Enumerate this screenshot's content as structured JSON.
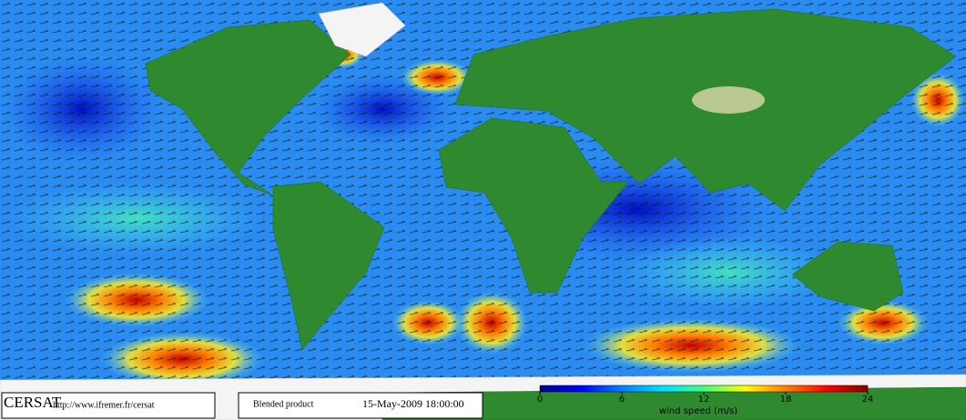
{
  "map": {
    "org": "CERSAT",
    "url": "http://www.ifremer.fr/cersat",
    "product": "Blended product",
    "date": "15-May-2009 18:00:00"
  },
  "colorbar": {
    "label": "wind speed (m/s)",
    "lim": [
      0,
      24
    ],
    "ticks": [
      0,
      6,
      12,
      18,
      24
    ],
    "colors": [
      "#00008b",
      "#0000ff",
      "#0080ff",
      "#00e0ff",
      "#40ff80",
      "#ffff00",
      "#ff8000",
      "#ff0000",
      "#800000"
    ]
  }
}
